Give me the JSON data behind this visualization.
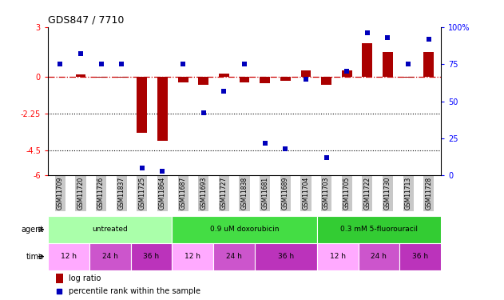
{
  "title": "GDS847 / 7710",
  "samples": [
    "GSM11709",
    "GSM11720",
    "GSM11726",
    "GSM11837",
    "GSM11725",
    "GSM11864",
    "GSM11687",
    "GSM11693",
    "GSM11727",
    "GSM11838",
    "GSM11681",
    "GSM11689",
    "GSM11704",
    "GSM11703",
    "GSM11705",
    "GSM11722",
    "GSM11730",
    "GSM11713",
    "GSM11728"
  ],
  "log_ratio": [
    0.0,
    0.15,
    -0.05,
    -0.08,
    -3.4,
    -3.9,
    -0.35,
    -0.5,
    0.18,
    -0.35,
    -0.42,
    -0.28,
    0.35,
    -0.5,
    0.35,
    2.0,
    1.5,
    -0.08,
    1.5
  ],
  "percentile": [
    75,
    82,
    75,
    75,
    5,
    3,
    75,
    42,
    57,
    75,
    22,
    18,
    65,
    12,
    70,
    96,
    93,
    75,
    92
  ],
  "ylim_left": [
    -6,
    3
  ],
  "ylim_right": [
    0,
    100
  ],
  "yticks_left": [
    -6,
    -4.5,
    -2.25,
    0,
    3
  ],
  "yticks_left_labels": [
    "-6",
    "-4.5",
    "-2.25",
    "0",
    "3"
  ],
  "yticks_right": [
    0,
    25,
    50,
    75,
    100
  ],
  "yticks_right_labels": [
    "0",
    "25",
    "50",
    "75",
    "100%"
  ],
  "bar_color": "#AA0000",
  "scatter_color": "#0000BB",
  "zero_line_color": "#CC0000",
  "agent_groups": [
    {
      "label": "untreated",
      "start": 0,
      "end": 6,
      "color": "#AAFFAA"
    },
    {
      "label": "0.9 uM doxorubicin",
      "start": 6,
      "end": 13,
      "color": "#44DD44"
    },
    {
      "label": "0.3 mM 5-fluorouracil",
      "start": 13,
      "end": 19,
      "color": "#33CC33"
    }
  ],
  "time_groups": [
    {
      "label": "12 h",
      "start": 0,
      "end": 2,
      "color": "#FFAAFF"
    },
    {
      "label": "24 h",
      "start": 2,
      "end": 4,
      "color": "#CC55CC"
    },
    {
      "label": "36 h",
      "start": 4,
      "end": 6,
      "color": "#BB33BB"
    },
    {
      "label": "12 h",
      "start": 6,
      "end": 8,
      "color": "#FFAAFF"
    },
    {
      "label": "24 h",
      "start": 8,
      "end": 10,
      "color": "#CC55CC"
    },
    {
      "label": "36 h",
      "start": 10,
      "end": 13,
      "color": "#BB33BB"
    },
    {
      "label": "12 h",
      "start": 13,
      "end": 15,
      "color": "#FFAAFF"
    },
    {
      "label": "24 h",
      "start": 15,
      "end": 17,
      "color": "#CC55CC"
    },
    {
      "label": "36 h",
      "start": 17,
      "end": 19,
      "color": "#BB33BB"
    }
  ],
  "legend_bar_label": "log ratio",
  "legend_scatter_label": "percentile rank within the sample",
  "xtick_bg": "#C8C8C8"
}
